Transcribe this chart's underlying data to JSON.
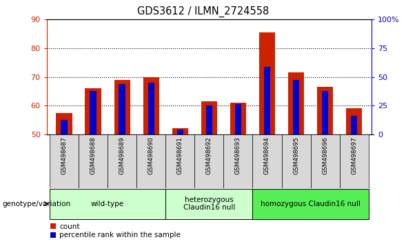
{
  "title": "GDS3612 / ILMN_2724558",
  "samples": [
    "GSM498687",
    "GSM498688",
    "GSM498689",
    "GSM498690",
    "GSM498691",
    "GSM498692",
    "GSM498693",
    "GSM498694",
    "GSM498695",
    "GSM498696",
    "GSM498697"
  ],
  "count_values": [
    57.5,
    66.0,
    69.0,
    70.0,
    52.0,
    61.5,
    61.0,
    85.5,
    71.5,
    66.5,
    59.0
  ],
  "percentile_values": [
    55.0,
    65.0,
    67.5,
    68.0,
    51.5,
    60.0,
    60.5,
    73.5,
    69.0,
    65.0,
    56.5
  ],
  "ymin": 50,
  "ymax": 90,
  "yticks": [
    50,
    60,
    70,
    80,
    90
  ],
  "right_yticks": [
    0,
    25,
    50,
    75,
    100
  ],
  "group_ranges": [
    {
      "start": 0,
      "end": 3,
      "label": "wild-type",
      "color": "#ccffcc"
    },
    {
      "start": 4,
      "end": 6,
      "label": "heterozygous\nClaudin16 null",
      "color": "#ccffcc"
    },
    {
      "start": 7,
      "end": 10,
      "label": "homozygous Claudin16 null",
      "color": "#55ee55"
    }
  ],
  "bar_color": "#cc2200",
  "percentile_color": "#0000cc",
  "bar_width": 0.55,
  "blue_bar_width": 0.22,
  "legend_count_label": "count",
  "legend_percentile_label": "percentile rank within the sample",
  "left_axis_color": "#cc2200",
  "right_axis_color": "#0000cc",
  "label_cell_color": "#d8d8d8",
  "plot_border_color": "#000000"
}
